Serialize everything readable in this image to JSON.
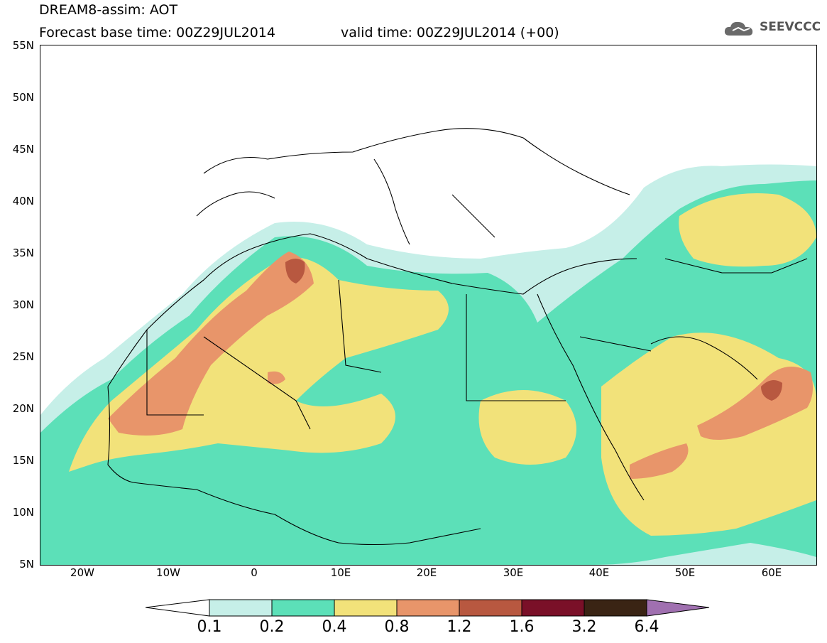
{
  "header": {
    "title_line1": "DREAM8-assim: AOT",
    "title_line2": "Forecast base time: 00Z29JUL2014",
    "valid_time": "valid time: 00Z29JUL2014 (+00)",
    "logo_text": "SEEVCCC",
    "logo_icon": "cloud-icon"
  },
  "axes": {
    "lat_labels": [
      "55N",
      "50N",
      "45N",
      "40N",
      "35N",
      "30N",
      "25N",
      "20N",
      "15N",
      "10N",
      "5N"
    ],
    "lon_labels": [
      "20W",
      "10W",
      "0",
      "10E",
      "20E",
      "30E",
      "40E",
      "50E",
      "60E"
    ],
    "lon_range": [
      -25,
      65
    ],
    "lat_range": [
      5,
      55
    ]
  },
  "colorbar": {
    "labels": [
      "0.1",
      "0.2",
      "0.4",
      "0.8",
      "1.2",
      "1.6",
      "3.2",
      "6.4"
    ],
    "colors": [
      "#ffffff",
      "#c6efe8",
      "#5ce0b8",
      "#f2e27a",
      "#e8956a",
      "#b85840",
      "#7a1028",
      "#3a2414",
      "#a070b0"
    ]
  }
}
